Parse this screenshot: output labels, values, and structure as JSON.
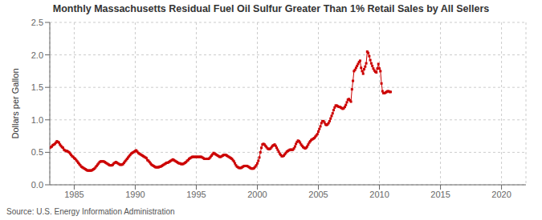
{
  "chart_data": {
    "type": "line",
    "title": "Monthly Massachusetts Residual Fuel Oil Sulfur Greater Than 1% Retail Sales by All Sellers",
    "ylabel": "Dollars per Gallon",
    "source": "Source: U.S. Energy Information Administration",
    "color": "#cc0000",
    "marker": "square",
    "grid": true,
    "xlim": [
      1983,
      2022
    ],
    "ylim": [
      0.0,
      2.5
    ],
    "xticks": [
      1985,
      1990,
      1995,
      2000,
      2005,
      2010,
      2015,
      2020
    ],
    "yticks": [
      {
        "value": 0.0,
        "label": "0.0"
      },
      {
        "value": 0.5,
        "label": "0.5"
      },
      {
        "value": 1.0,
        "label": "1.0"
      },
      {
        "value": 1.5,
        "label": "1.5"
      },
      {
        "value": 2.0,
        "label": "2.0"
      },
      {
        "value": 2.5,
        "label": "2.5"
      }
    ],
    "x": [
      1983,
      1983.0833333333333,
      1983.1666666666667,
      1983.25,
      1983.3333333333333,
      1983.4166666666667,
      1983.5,
      1983.5833333333333,
      1983.6666666666667,
      1983.75,
      1983.8333333333333,
      1983.9166666666667,
      1984,
      1984.0833333333333,
      1984.1666666666667,
      1984.25,
      1984.3333333333333,
      1984.4166666666667,
      1984.5,
      1984.5833333333333,
      1984.6666666666667,
      1984.75,
      1984.8333333333333,
      1984.9166666666667,
      1985,
      1985.0833333333333,
      1985.1666666666667,
      1985.25,
      1985.3333333333333,
      1985.4166666666667,
      1985.5,
      1985.5833333333333,
      1985.6666666666667,
      1985.75,
      1985.8333333333333,
      1985.9166666666667,
      1986,
      1986.0833333333333,
      1986.1666666666667,
      1986.25,
      1986.3333333333333,
      1986.4166666666667,
      1986.5,
      1986.5833333333333,
      1986.6666666666667,
      1986.75,
      1986.8333333333333,
      1986.9166666666667,
      1987,
      1987.0833333333333,
      1987.1666666666667,
      1987.25,
      1987.3333333333333,
      1987.4166666666667,
      1987.5,
      1987.5833333333333,
      1987.6666666666667,
      1987.75,
      1987.8333333333333,
      1987.9166666666667,
      1988,
      1988.0833333333333,
      1988.1666666666667,
      1988.25,
      1988.3333333333333,
      1988.4166666666667,
      1988.5,
      1988.5833333333333,
      1988.6666666666667,
      1988.75,
      1988.8333333333333,
      1988.9166666666667,
      1989,
      1989.0833333333333,
      1989.1666666666667,
      1989.25,
      1989.3333333333333,
      1989.4166666666667,
      1989.5,
      1989.5833333333333,
      1989.6666666666667,
      1989.75,
      1989.8333333333333,
      1989.9166666666667,
      1990,
      1990.0833333333333,
      1990.1666666666667,
      1990.25,
      1990.3333333333333,
      1990.4166666666667,
      1990.5,
      1990.5833333333333,
      1990.6666666666667,
      1990.75,
      1990.8333333333333,
      1990.9166666666667,
      1991,
      1991.0833333333333,
      1991.1666666666667,
      1991.25,
      1991.3333333333333,
      1991.4166666666667,
      1991.5,
      1991.5833333333333,
      1991.6666666666667,
      1991.75,
      1991.8333333333333,
      1991.9166666666667,
      1992,
      1992.0833333333333,
      1992.1666666666667,
      1992.25,
      1992.3333333333333,
      1992.4166666666667,
      1992.5,
      1992.5833333333333,
      1992.6666666666667,
      1992.75,
      1992.8333333333333,
      1992.9166666666667,
      1993,
      1993.0833333333333,
      1993.1666666666667,
      1993.25,
      1993.3333333333333,
      1993.4166666666667,
      1993.5,
      1993.5833333333333,
      1993.6666666666667,
      1993.75,
      1993.8333333333333,
      1993.9166666666667,
      1994,
      1994.0833333333333,
      1994.1666666666667,
      1994.25,
      1994.3333333333333,
      1994.4166666666667,
      1994.5,
      1994.5833333333333,
      1994.6666666666667,
      1994.75,
      1994.8333333333333,
      1994.9166666666667,
      1995,
      1995.0833333333333,
      1995.1666666666667,
      1995.25,
      1995.3333333333333,
      1995.4166666666667,
      1995.5,
      1995.5833333333333,
      1995.6666666666667,
      1995.75,
      1995.8333333333333,
      1995.9166666666667,
      1996,
      1996.0833333333333,
      1996.1666666666667,
      1996.25,
      1996.3333333333333,
      1996.4166666666667,
      1996.5,
      1996.5833333333333,
      1996.6666666666667,
      1996.75,
      1996.8333333333333,
      1996.9166666666667,
      1997,
      1997.0833333333333,
      1997.1666666666667,
      1997.25,
      1997.3333333333333,
      1997.4166666666667,
      1997.5,
      1997.5833333333333,
      1997.6666666666667,
      1997.75,
      1997.8333333333333,
      1997.9166666666667,
      1998,
      1998.0833333333333,
      1998.1666666666667,
      1998.25,
      1998.3333333333333,
      1998.4166666666667,
      1998.5,
      1998.5833333333333,
      1998.6666666666667,
      1998.75,
      1998.8333333333333,
      1998.9166666666667,
      1999,
      1999.0833333333333,
      1999.1666666666667,
      1999.25,
      1999.3333333333333,
      1999.4166666666667,
      1999.5,
      1999.5833333333333,
      1999.6666666666667,
      1999.75,
      1999.8333333333333,
      1999.9166666666667,
      2000,
      2000.0833333333333,
      2000.1666666666667,
      2000.25,
      2000.3333333333333,
      2000.4166666666667,
      2000.5,
      2000.5833333333333,
      2000.6666666666667,
      2000.75,
      2000.8333333333333,
      2000.9166666666667,
      2001,
      2001.0833333333333,
      2001.1666666666667,
      2001.25,
      2001.3333333333333,
      2001.4166666666667,
      2001.5,
      2001.5833333333333,
      2001.6666666666667,
      2001.75,
      2001.8333333333333,
      2001.9166666666667,
      2002,
      2002.0833333333333,
      2002.1666666666667,
      2002.25,
      2002.3333333333333,
      2002.4166666666667,
      2002.5,
      2002.5833333333333,
      2002.6666666666667,
      2002.75,
      2002.8333333333333,
      2002.9166666666667,
      2003,
      2003.0833333333333,
      2003.1666666666667,
      2003.25,
      2003.3333333333333,
      2003.4166666666667,
      2003.5,
      2003.5833333333333,
      2003.6666666666667,
      2003.75,
      2003.8333333333333,
      2003.9166666666667,
      2004,
      2004.0833333333333,
      2004.1666666666667,
      2004.25,
      2004.3333333333333,
      2004.4166666666667,
      2004.5,
      2004.5833333333333,
      2004.6666666666667,
      2004.75,
      2004.8333333333333,
      2004.9166666666667,
      2005,
      2005.0833333333333,
      2005.1666666666667,
      2005.25,
      2005.3333333333333,
      2005.4166666666667,
      2005.5,
      2005.5833333333333,
      2005.6666666666667,
      2005.75,
      2005.8333333333333,
      2005.9166666666667,
      2006,
      2006.0833333333333,
      2006.1666666666667,
      2006.25,
      2006.3333333333333,
      2006.4166666666667,
      2006.5,
      2006.5833333333333,
      2006.6666666666667,
      2006.75,
      2006.8333333333333,
      2006.9166666666667,
      2007,
      2007.0833333333333,
      2007.1666666666667,
      2007.25,
      2007.3333333333333,
      2007.4166666666667,
      2007.5,
      2007.5833333333333,
      2007.6666666666667,
      2007.75,
      2007.8333333333333,
      2007.9166666666667,
      2008,
      2008.0833333333333,
      2008.1666666666667,
      2008.25,
      2008.3333333333333,
      2008.4166666666667,
      2008.5,
      2008.5833333333333,
      2008.6666666666667,
      2008.75,
      2008.8333333333333,
      2008.9166666666667,
      2009,
      2009.0833333333333,
      2009.1666666666667,
      2009.25,
      2009.3333333333333,
      2009.4166666666667,
      2009.5,
      2009.5833333333333,
      2009.6666666666667,
      2009.75,
      2009.8333333333333,
      2009.9166666666667,
      2010,
      2010.0833333333333,
      2010.1666666666667,
      2010.25,
      2010.3333333333333,
      2010.4166666666667,
      2010.5,
      2010.5833333333333,
      2010.6666666666667,
      2010.75,
      2010.8333333333333,
      2010.9166666666667
    ],
    "values": [
      0.57,
      0.58,
      0.59,
      0.61,
      0.62,
      0.63,
      0.65,
      0.67,
      0.66,
      0.65,
      0.62,
      0.6,
      0.58,
      0.57,
      0.54,
      0.53,
      0.52,
      0.52,
      0.51,
      0.5,
      0.48,
      0.46,
      0.44,
      0.43,
      0.41,
      0.4,
      0.38,
      0.36,
      0.34,
      0.32,
      0.3,
      0.28,
      0.27,
      0.26,
      0.25,
      0.24,
      0.23,
      0.22,
      0.22,
      0.22,
      0.22,
      0.22,
      0.23,
      0.24,
      0.25,
      0.27,
      0.29,
      0.31,
      0.33,
      0.35,
      0.36,
      0.36,
      0.36,
      0.36,
      0.35,
      0.34,
      0.33,
      0.32,
      0.31,
      0.3,
      0.3,
      0.3,
      0.31,
      0.33,
      0.34,
      0.35,
      0.34,
      0.33,
      0.32,
      0.31,
      0.31,
      0.31,
      0.32,
      0.34,
      0.36,
      0.38,
      0.4,
      0.42,
      0.44,
      0.46,
      0.48,
      0.49,
      0.5,
      0.51,
      0.52,
      0.53,
      0.51,
      0.49,
      0.48,
      0.47,
      0.46,
      0.45,
      0.44,
      0.43,
      0.42,
      0.41,
      0.38,
      0.37,
      0.35,
      0.33,
      0.31,
      0.3,
      0.29,
      0.28,
      0.27,
      0.27,
      0.27,
      0.27,
      0.28,
      0.28,
      0.29,
      0.3,
      0.31,
      0.32,
      0.33,
      0.34,
      0.34,
      0.35,
      0.36,
      0.37,
      0.38,
      0.39,
      0.38,
      0.37,
      0.36,
      0.35,
      0.34,
      0.33,
      0.33,
      0.32,
      0.32,
      0.32,
      0.33,
      0.34,
      0.35,
      0.37,
      0.38,
      0.4,
      0.41,
      0.42,
      0.43,
      0.43,
      0.43,
      0.43,
      0.43,
      0.43,
      0.43,
      0.43,
      0.43,
      0.43,
      0.42,
      0.41,
      0.4,
      0.4,
      0.4,
      0.4,
      0.4,
      0.41,
      0.43,
      0.45,
      0.47,
      0.49,
      0.48,
      0.47,
      0.46,
      0.45,
      0.44,
      0.43,
      0.43,
      0.44,
      0.45,
      0.46,
      0.46,
      0.46,
      0.45,
      0.44,
      0.43,
      0.42,
      0.41,
      0.4,
      0.38,
      0.36,
      0.33,
      0.3,
      0.28,
      0.27,
      0.26,
      0.26,
      0.26,
      0.27,
      0.28,
      0.29,
      0.29,
      0.29,
      0.29,
      0.28,
      0.27,
      0.26,
      0.25,
      0.25,
      0.25,
      0.26,
      0.28,
      0.3,
      0.33,
      0.37,
      0.42,
      0.5,
      0.57,
      0.62,
      0.63,
      0.62,
      0.6,
      0.58,
      0.56,
      0.55,
      0.55,
      0.56,
      0.58,
      0.6,
      0.61,
      0.62,
      0.6,
      0.57,
      0.54,
      0.51,
      0.48,
      0.46,
      0.44,
      0.44,
      0.45,
      0.47,
      0.49,
      0.51,
      0.52,
      0.53,
      0.54,
      0.54,
      0.54,
      0.54,
      0.56,
      0.59,
      0.63,
      0.66,
      0.68,
      0.67,
      0.65,
      0.62,
      0.6,
      0.58,
      0.57,
      0.56,
      0.57,
      0.59,
      0.62,
      0.65,
      0.67,
      0.69,
      0.7,
      0.71,
      0.72,
      0.74,
      0.76,
      0.78,
      0.82,
      0.86,
      0.9,
      0.95,
      0.98,
      0.98,
      0.96,
      0.93,
      0.92,
      0.93,
      0.95,
      0.98,
      1.02,
      1.06,
      1.1,
      1.15,
      1.19,
      1.22,
      1.22,
      1.21,
      1.2,
      1.2,
      1.19,
      1.18,
      1.17,
      1.18,
      1.2,
      1.23,
      1.27,
      1.31,
      1.32,
      1.3,
      1.28,
      1.47,
      1.6,
      1.75,
      1.77,
      1.8,
      1.83,
      1.86,
      1.89,
      1.91,
      1.8,
      1.75,
      1.71,
      1.78,
      1.82,
      1.87,
      2.05,
      2.03,
      1.98,
      1.92,
      1.87,
      1.83,
      1.79,
      1.76,
      1.74,
      1.73,
      1.79,
      1.86,
      1.79,
      1.75,
      1.56,
      1.44,
      1.41,
      1.41,
      1.42,
      1.43,
      1.44,
      1.44,
      1.43,
      1.43
    ]
  }
}
